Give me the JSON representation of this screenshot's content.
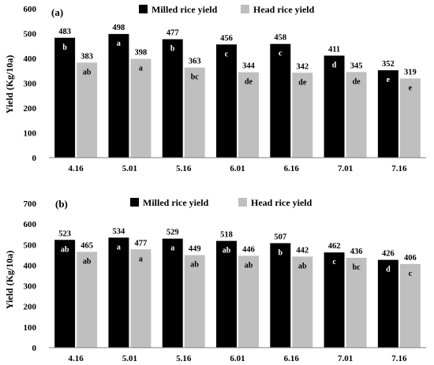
{
  "colors": {
    "milled": "#000000",
    "head": "#bfbfbf",
    "axis": "#7f7f7f"
  },
  "chart_data": [
    {
      "type": "bar",
      "panel_label": "(a)",
      "categories": [
        "4.16",
        "5.01",
        "5.16",
        "6.01",
        "6.16",
        "7.01",
        "7.16"
      ],
      "ylabel": "Yield (Kg/10a)",
      "ylim": [
        0,
        600
      ],
      "yticks": [
        0,
        100,
        200,
        300,
        400,
        500,
        600
      ],
      "legend": "top",
      "series": [
        {
          "name": "Milled rice yield",
          "values": [
            483,
            498,
            477,
            456,
            458,
            411,
            352
          ],
          "letters": [
            "b",
            "a",
            "b",
            "c",
            "c",
            "d",
            "e"
          ]
        },
        {
          "name": "Head rice yield",
          "values": [
            383,
            398,
            363,
            344,
            342,
            345,
            319
          ],
          "letters": [
            "ab",
            "a",
            "bc",
            "de",
            "de",
            "de",
            "e"
          ]
        }
      ]
    },
    {
      "type": "bar",
      "panel_label": "(b)",
      "categories": [
        "4.16",
        "5.01",
        "5.16",
        "6.01",
        "6.16",
        "7.01",
        "7.16"
      ],
      "ylabel": "Yield (Kg/10a)",
      "ylim": [
        0,
        700
      ],
      "yticks": [
        0,
        100,
        200,
        300,
        400,
        500,
        600,
        700
      ],
      "legend": "top",
      "series": [
        {
          "name": "Milled rice yield",
          "values": [
            523,
            534,
            529,
            518,
            507,
            462,
            426
          ],
          "letters": [
            "ab",
            "a",
            "a",
            "ab",
            "b",
            "c",
            "d"
          ]
        },
        {
          "name": "Head rice yield",
          "values": [
            465,
            477,
            449,
            446,
            442,
            436,
            406
          ],
          "letters": [
            "ab",
            "a",
            "ab",
            "ab",
            "ab",
            "bc",
            "c"
          ]
        }
      ]
    }
  ]
}
